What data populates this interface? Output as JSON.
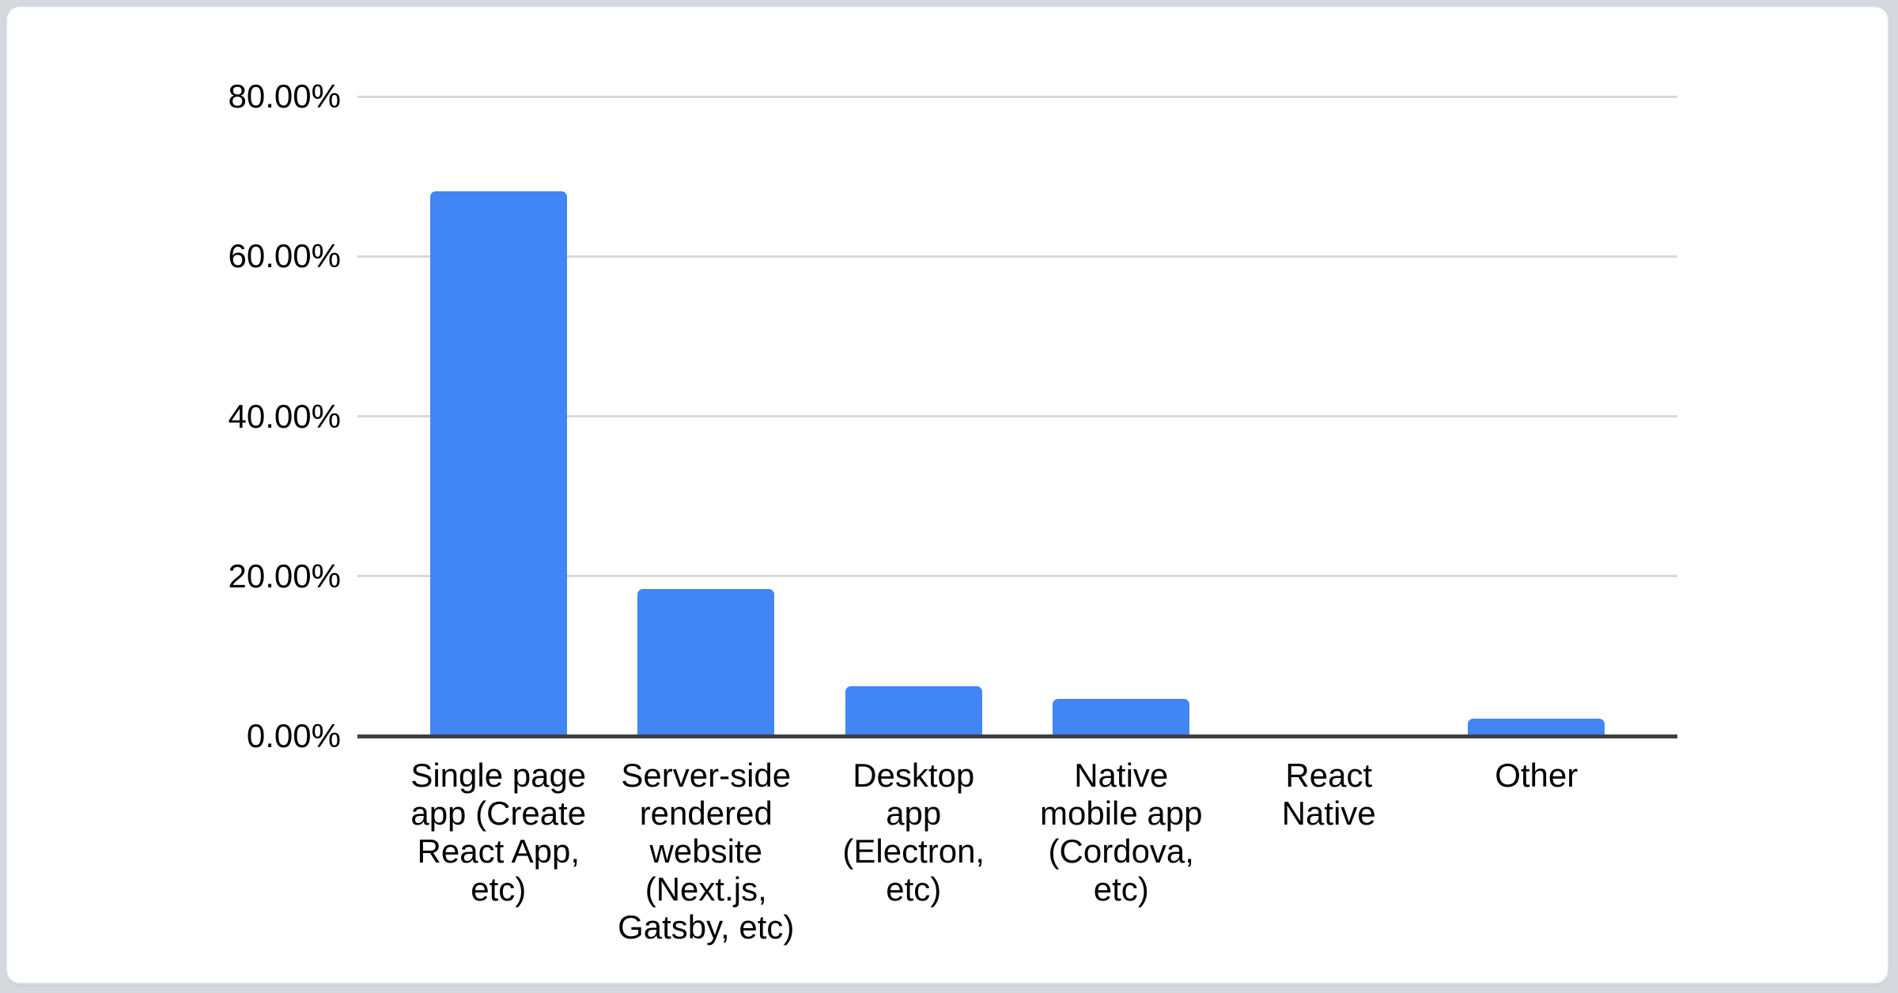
{
  "page": {
    "background_color": "#d5d8dc",
    "card_background_color": "#ffffff"
  },
  "chart_data": {
    "type": "bar",
    "categories": [
      "Single page app (Create React App, etc)",
      "Server-side rendered website (Next.js, Gatsby, etc)",
      "Desktop app (Electron, etc)",
      "Native mobile app (Cordova, etc)",
      "React Native",
      "Other"
    ],
    "values": [
      68.1,
      18.4,
      6.2,
      4.6,
      0,
      2.2
    ],
    "value_suffix": "%",
    "y_ticks": [
      80,
      60,
      40,
      20,
      0
    ],
    "y_tick_labels": [
      "80.00%",
      "60.00%",
      "40.00%",
      "20.00%",
      "0.00%"
    ],
    "ylim": [
      0,
      80
    ],
    "grid": true,
    "legend": "none",
    "bar_color": "#4285f4",
    "gridline_color": "#d9d9d9",
    "axis_line_color": "#3c4043",
    "label_color": "#000000"
  }
}
